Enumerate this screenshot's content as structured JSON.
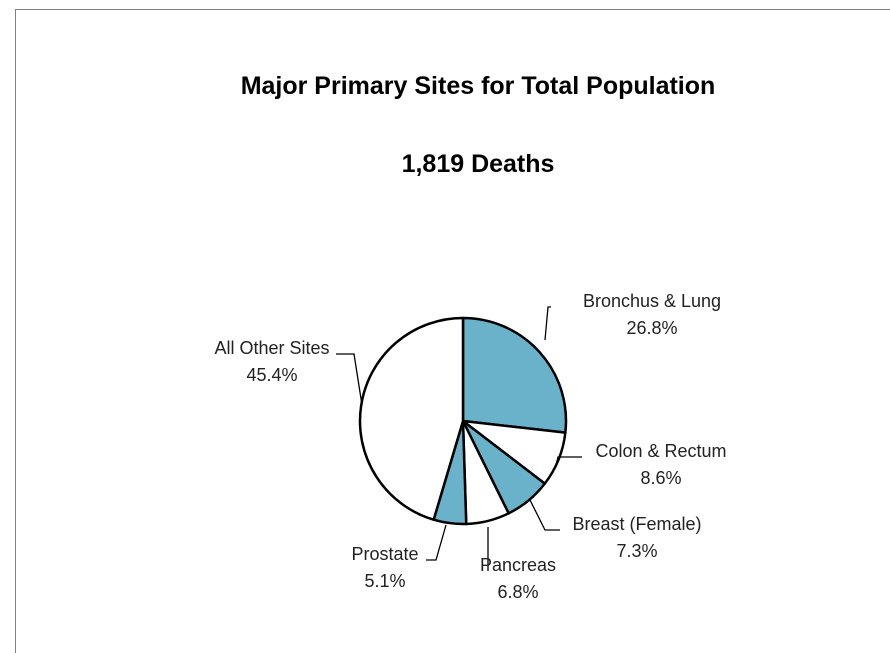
{
  "chart_data": {
    "type": "pie",
    "title": "Major Primary Sites for Total Population",
    "subtitle": "1,819 Deaths",
    "slices": [
      {
        "label": "Bronchus & Lung",
        "pct_label": "26.8%",
        "value": 26.8,
        "color": "#6ab2ca"
      },
      {
        "label": "Colon & Rectum",
        "pct_label": "8.6%",
        "value": 8.6,
        "color": "#ffffff"
      },
      {
        "label": "Breast (Female)",
        "pct_label": "7.3%",
        "value": 7.3,
        "color": "#6ab2ca"
      },
      {
        "label": "Pancreas",
        "pct_label": "6.8%",
        "value": 6.8,
        "color": "#ffffff"
      },
      {
        "label": "Prostate",
        "pct_label": "5.1%",
        "value": 5.1,
        "color": "#6ab2ca"
      },
      {
        "label": "All Other Sites",
        "pct_label": "45.4%",
        "value": 45.4,
        "color": "#ffffff"
      }
    ]
  }
}
